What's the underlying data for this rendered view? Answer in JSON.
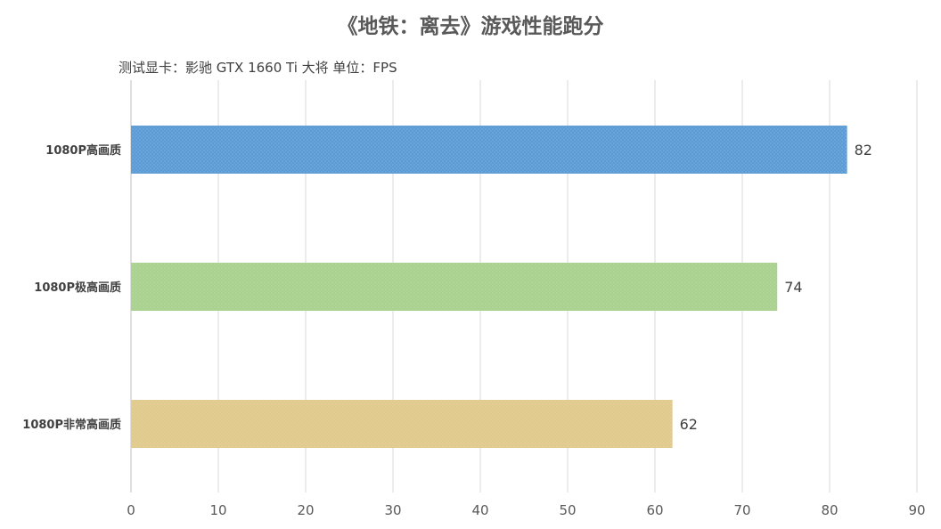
{
  "chart_data": {
    "type": "bar",
    "orientation": "horizontal",
    "title": "《地铁：离去》游戏性能跑分",
    "subtitle": "测试显卡：影驰 GTX 1660 Ti 大将   单位：FPS",
    "categories": [
      "1080P高画质",
      "1080P极高画质",
      "1080P非常高画质"
    ],
    "values": [
      82,
      74,
      62
    ],
    "bar_colors": [
      "#5b9bd5",
      "#a9d18e",
      "#e0c98a"
    ],
    "xlim": [
      0,
      90
    ],
    "xticks": [
      0,
      10,
      20,
      30,
      40,
      50,
      60,
      70,
      80,
      90
    ],
    "xlabel": "",
    "ylabel": "",
    "grid": "vertical",
    "data_labels": true,
    "legend": false
  }
}
